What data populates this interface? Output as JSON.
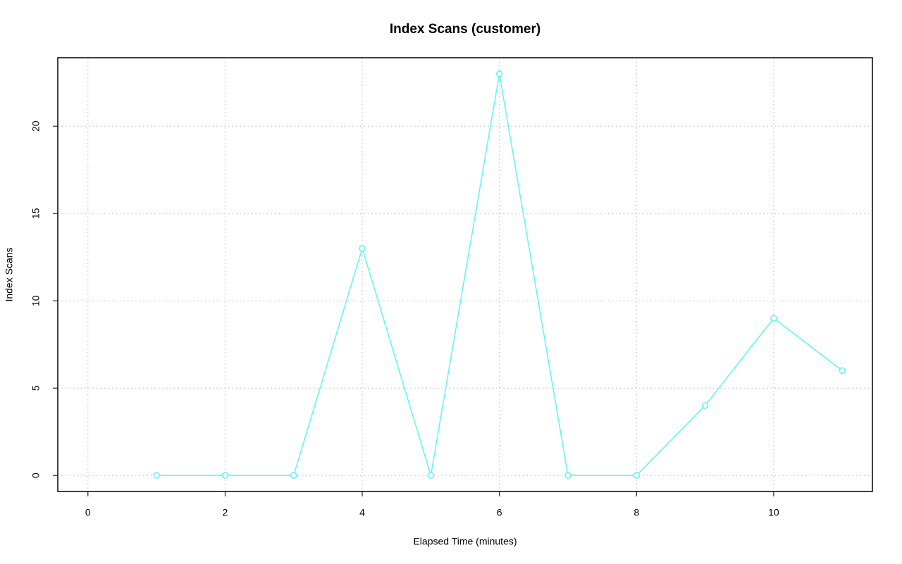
{
  "chart_data": {
    "type": "line",
    "title": "Index Scans (customer)",
    "x_label": "Elapsed Time (minutes)",
    "y_label": "Index Scans",
    "x": [
      1,
      2,
      3,
      4,
      5,
      6,
      7,
      8,
      9,
      10,
      11
    ],
    "values": [
      0,
      0,
      0,
      13,
      0,
      23,
      0,
      0,
      4,
      9,
      6
    ],
    "color": "#5ff5f5",
    "markers": true,
    "xlim": [
      -0.44,
      11.44
    ],
    "ylim": [
      -0.92,
      23.92
    ],
    "xticks": [
      0,
      2,
      4,
      6,
      8,
      10
    ],
    "yticks": [
      0,
      5,
      10,
      15,
      20
    ],
    "grid": true
  }
}
